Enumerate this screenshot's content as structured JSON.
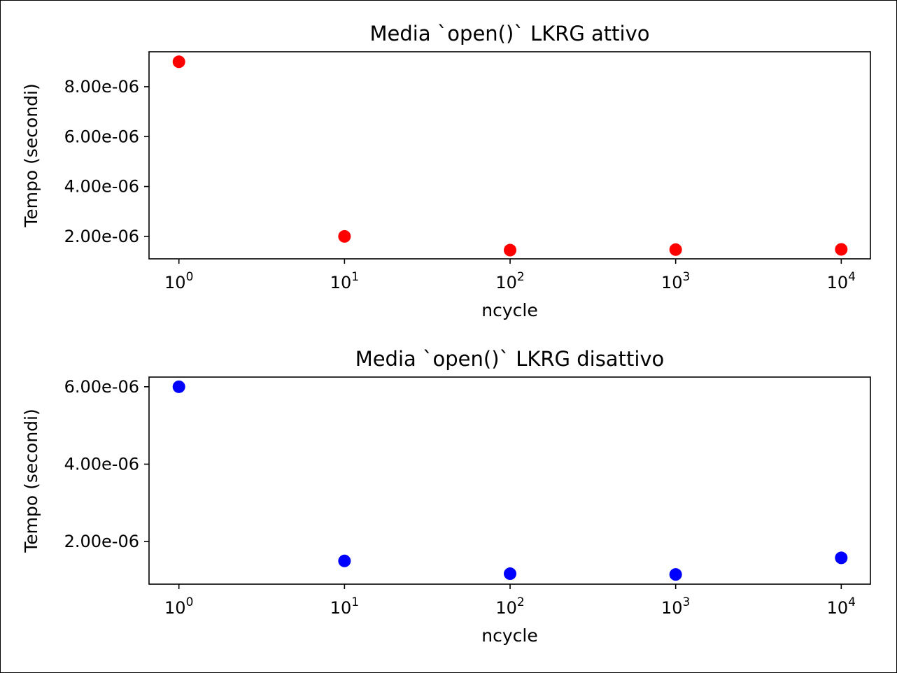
{
  "chart_data": [
    {
      "type": "scatter",
      "title": "Media `open()` LKRG attivo",
      "xlabel": "ncycle",
      "ylabel": "Tempo (secondi)",
      "xscale": "log",
      "x": [
        1,
        10,
        100,
        1000,
        10000
      ],
      "series": [
        {
          "values": [
            9e-06,
            2e-06,
            1.45e-06,
            1.47e-06,
            1.48e-06
          ],
          "color": "#ff0000"
        }
      ],
      "xlim": [
        0.66,
        15000
      ],
      "ylim": [
        1.1e-06,
        9.4e-06
      ],
      "xticks": {
        "base": [
          "10",
          "10",
          "10",
          "10",
          "10"
        ],
        "exponents": [
          "0",
          "1",
          "2",
          "3",
          "4"
        ]
      },
      "yticks": [
        {
          "value": 2e-06,
          "label": "2.00e-06"
        },
        {
          "value": 4e-06,
          "label": "4.00e-06"
        },
        {
          "value": 6e-06,
          "label": "6.00e-06"
        },
        {
          "value": 8e-06,
          "label": "8.00e-06"
        }
      ],
      "grid": false,
      "legend": "none"
    },
    {
      "type": "scatter",
      "title": "Media `open()` LKRG disattivo",
      "xlabel": "ncycle",
      "ylabel": "Tempo (secondi)",
      "xscale": "log",
      "x": [
        1,
        10,
        100,
        1000,
        10000
      ],
      "series": [
        {
          "values": [
            6e-06,
            1.5e-06,
            1.17e-06,
            1.15e-06,
            1.58e-06
          ],
          "color": "#0000ff"
        }
      ],
      "xlim": [
        0.66,
        15000
      ],
      "ylim": [
        9e-07,
        6.25e-06
      ],
      "xticks": {
        "base": [
          "10",
          "10",
          "10",
          "10",
          "10"
        ],
        "exponents": [
          "0",
          "1",
          "2",
          "3",
          "4"
        ]
      },
      "yticks": [
        {
          "value": 2e-06,
          "label": "2.00e-06"
        },
        {
          "value": 4e-06,
          "label": "4.00e-06"
        },
        {
          "value": 6e-06,
          "label": "6.00e-06"
        }
      ],
      "grid": false,
      "legend": "none"
    }
  ]
}
